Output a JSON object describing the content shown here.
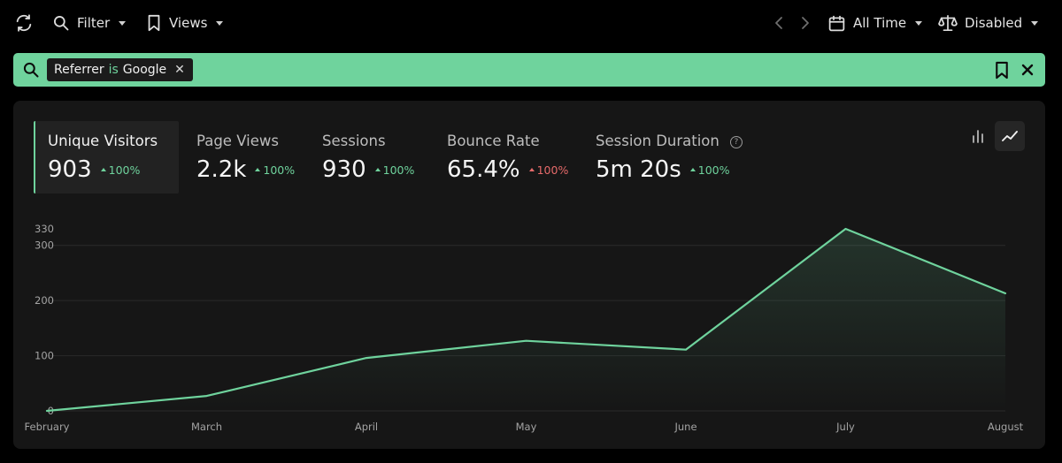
{
  "toolbar": {
    "filter_label": "Filter",
    "views_label": "Views",
    "time_range_label": "All Time",
    "compare_label": "Disabled"
  },
  "filter": {
    "field": "Referrer",
    "operator": "is",
    "value": "Google"
  },
  "stats": [
    {
      "label": "Unique Visitors",
      "value": "903",
      "change": "100%",
      "direction": "up",
      "active": true
    },
    {
      "label": "Page Views",
      "value": "2.2k",
      "change": "100%",
      "direction": "up",
      "active": false
    },
    {
      "label": "Sessions",
      "value": "930",
      "change": "100%",
      "direction": "up",
      "active": false
    },
    {
      "label": "Bounce Rate",
      "value": "65.4%",
      "change": "100%",
      "direction": "up",
      "active": false
    },
    {
      "label": "Session Duration",
      "value": "5m 20s",
      "change": "100%",
      "direction": "up",
      "active": false
    }
  ],
  "colors": {
    "accent": "#6fd39d",
    "negative": "#e66a6a",
    "background": "#000000",
    "panel": "#161616"
  },
  "chart_data": {
    "type": "area",
    "title": "",
    "xlabel": "",
    "ylabel": "",
    "categories": [
      "February",
      "March",
      "April",
      "May",
      "June",
      "July",
      "August"
    ],
    "series": [
      {
        "name": "Unique Visitors",
        "values": [
          0,
          27,
          96,
          127,
          111,
          330,
          213
        ]
      }
    ],
    "y_ticks": [
      0,
      100,
      200,
      300,
      330
    ],
    "ylim": [
      0,
      330
    ],
    "grid": true
  }
}
